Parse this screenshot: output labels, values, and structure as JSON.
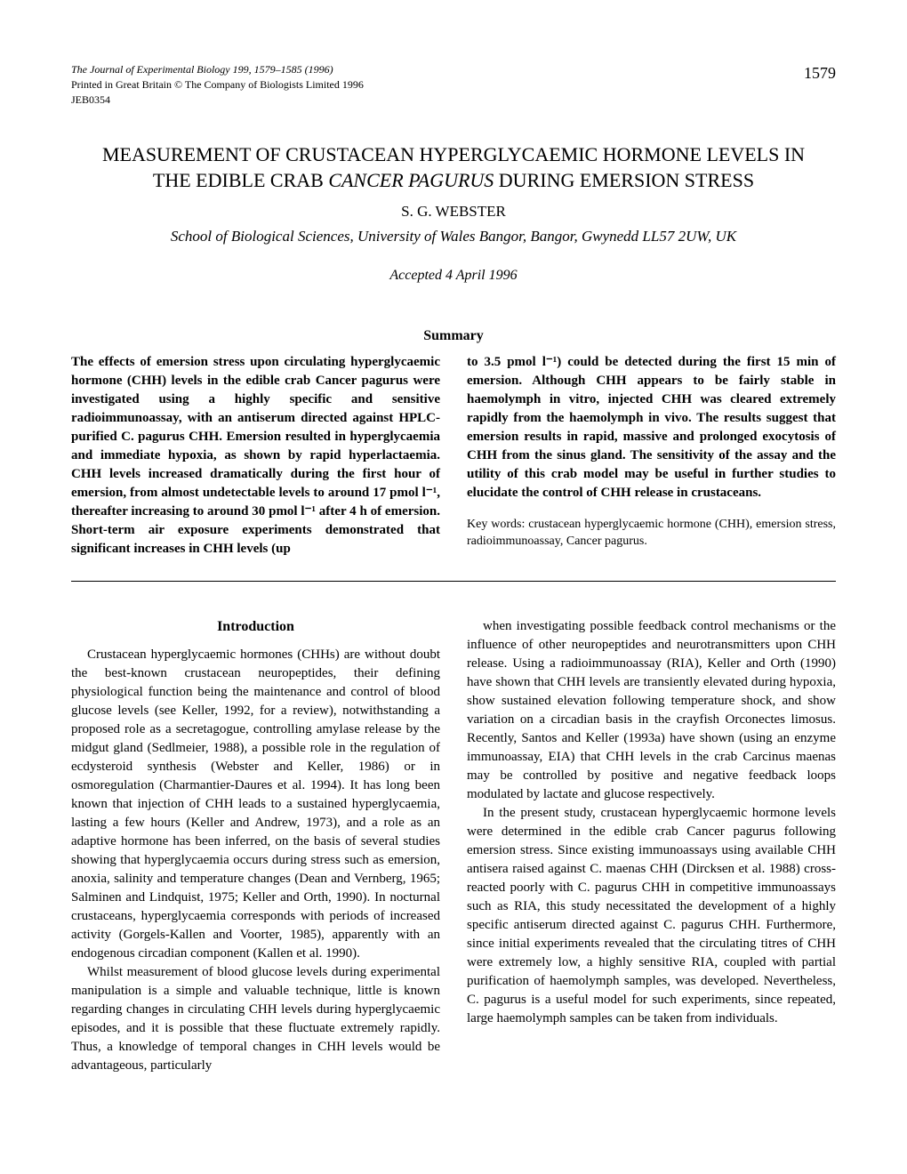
{
  "meta": {
    "journal_line": "The Journal of Experimental Biology 199, 1579–1585 (1996)",
    "print_line": "Printed in Great Britain © The Company of Biologists Limited 1996",
    "ref_code": "JEB0354",
    "page_number": "1579"
  },
  "title_line1": "MEASUREMENT OF CRUSTACEAN HYPERGLYCAEMIC HORMONE LEVELS IN",
  "title_line2_pre": "THE EDIBLE CRAB ",
  "title_line2_italic": "CANCER PAGURUS",
  "title_line2_post": " DURING EMERSION STRESS",
  "author": "S. G. WEBSTER",
  "affiliation": "School of Biological Sciences, University of Wales Bangor, Bangor, Gwynedd LL57 2UW, UK",
  "accepted": "Accepted 4 April 1996",
  "summary_heading": "Summary",
  "summary_left": "The effects of emersion stress upon circulating hyperglycaemic hormone (CHH) levels in the edible crab Cancer pagurus were investigated using a highly specific and sensitive radioimmunoassay, with an antiserum directed against HPLC-purified C. pagurus CHH. Emersion resulted in hyperglycaemia and immediate hypoxia, as shown by rapid hyperlactaemia. CHH levels increased dramatically during the first hour of emersion, from almost undetectable levels to around 17 pmol l⁻¹, thereafter increasing to around 30 pmol l⁻¹ after 4 h of emersion. Short-term air exposure experiments demonstrated that significant increases in CHH levels (up",
  "summary_right": "to 3.5 pmol l⁻¹) could be detected during the first 15 min of emersion. Although CHH appears to be fairly stable in haemolymph in vitro, injected CHH was cleared extremely rapidly from the haemolymph in vivo. The results suggest that emersion results in rapid, massive and prolonged exocytosis of CHH from the sinus gland. The sensitivity of the assay and the utility of this crab model may be useful in further studies to elucidate the control of CHH release in crustaceans.",
  "keywords": "Key words: crustacean hyperglycaemic hormone (CHH), emersion stress, radioimmunoassay, Cancer pagurus.",
  "intro_heading": "Introduction",
  "intro_left_p1": "Crustacean hyperglycaemic hormones (CHHs) are without doubt the best-known crustacean neuropeptides, their defining physiological function being the maintenance and control of blood glucose levels (see Keller, 1992, for a review), notwithstanding a proposed role as a secretagogue, controlling amylase release by the midgut gland (Sedlmeier, 1988), a possible role in the regulation of ecdysteroid synthesis (Webster and Keller, 1986) or in osmoregulation (Charmantier-Daures et al. 1994). It has long been known that injection of CHH leads to a sustained hyperglycaemia, lasting a few hours (Keller and Andrew, 1973), and a role as an adaptive hormone has been inferred, on the basis of several studies showing that hyperglycaemia occurs during stress such as emersion, anoxia, salinity and temperature changes (Dean and Vernberg, 1965; Salminen and Lindquist, 1975; Keller and Orth, 1990). In nocturnal crustaceans, hyperglycaemia corresponds with periods of increased activity (Gorgels-Kallen and Voorter, 1985), apparently with an endogenous circadian component (Kallen et al. 1990).",
  "intro_left_p2": "Whilst measurement of blood glucose levels during experimental manipulation is a simple and valuable technique, little is known regarding changes in circulating CHH levels during hyperglycaemic episodes, and it is possible that these fluctuate extremely rapidly. Thus, a knowledge of temporal changes in CHH levels would be advantageous, particularly",
  "intro_right_p1": "when investigating possible feedback control mechanisms or the influence of other neuropeptides and neurotransmitters upon CHH release. Using a radioimmunoassay (RIA), Keller and Orth (1990) have shown that CHH levels are transiently elevated during hypoxia, show sustained elevation following temperature shock, and show variation on a circadian basis in the crayfish Orconectes limosus. Recently, Santos and Keller (1993a) have shown (using an enzyme immunoassay, EIA) that CHH levels in the crab Carcinus maenas may be controlled by positive and negative feedback loops modulated by lactate and glucose respectively.",
  "intro_right_p2": "In the present study, crustacean hyperglycaemic hormone levels were determined in the edible crab Cancer pagurus following emersion stress. Since existing immunoassays using available CHH antisera raised against C. maenas CHH (Dircksen et al. 1988) cross-reacted poorly with C. pagurus CHH in competitive immunoassays such as RIA, this study necessitated the development of a highly specific antiserum directed against C. pagurus CHH. Furthermore, since initial experiments revealed that the circulating titres of CHH were extremely low, a highly sensitive RIA, coupled with partial purification of haemolymph samples, was developed. Nevertheless, C. pagurus is a useful model for such experiments, since repeated, large haemolymph samples can be taken from individuals."
}
